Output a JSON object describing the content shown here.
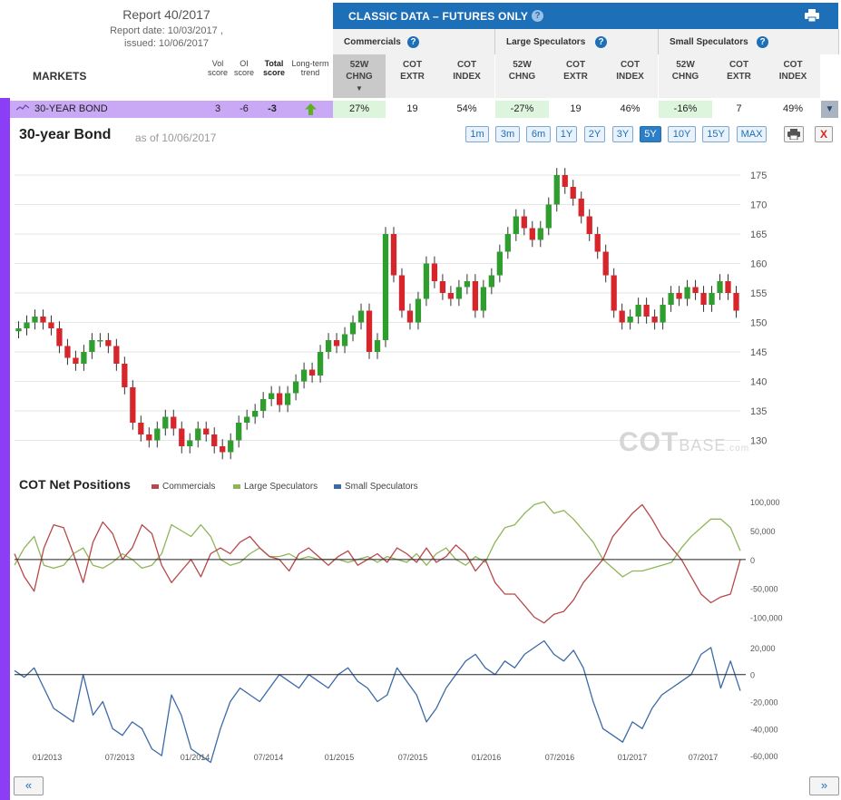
{
  "report": {
    "title": "Report 40/2017",
    "date_line": "Report date: 10/03/2017 ,",
    "issued_line": "issued: 10/06/2017"
  },
  "markets_label": "MARKETS",
  "left_cols": {
    "vol": [
      "Vol",
      "score"
    ],
    "oi": [
      "OI",
      "score"
    ],
    "total": [
      "Total",
      "score"
    ],
    "trend": [
      "Long-term",
      "trend"
    ]
  },
  "classic": {
    "title": "CLASSIC DATA – FUTURES ONLY",
    "help": "?",
    "groups": [
      {
        "label": "Commercials"
      },
      {
        "label": "Large Speculators"
      },
      {
        "label": "Small Speculators"
      }
    ],
    "subheaders": [
      [
        "52W",
        "CHNG"
      ],
      [
        "COT",
        "EXTR"
      ],
      [
        "COT",
        "INDEX"
      ],
      [
        "52W",
        "CHNG"
      ],
      [
        "COT",
        "EXTR"
      ],
      [
        "COT",
        "INDEX"
      ],
      [
        "52W",
        "CHNG"
      ],
      [
        "COT",
        "EXTR"
      ],
      [
        "COT",
        "INDEX"
      ]
    ],
    "sort_arrow": "▼"
  },
  "market_row": {
    "name": "30-YEAR BOND",
    "vol": "3",
    "oi": "-6",
    "total": "-3",
    "trend_icon": "arrow-up-green",
    "values": [
      "27%",
      "19",
      "54%",
      "-27%",
      "19",
      "46%",
      "-16%",
      "7",
      "49%"
    ],
    "expand": "▼"
  },
  "chart": {
    "title": "30-year Bond",
    "as_of": "as of 10/06/2017",
    "ranges": [
      "1m",
      "3m",
      "6m",
      "1Y",
      "2Y",
      "3Y",
      "5Y",
      "10Y",
      "15Y",
      "MAX"
    ],
    "active_range": "5Y",
    "close": "X",
    "watermark": {
      "cot": "COT",
      "base": "BASE",
      "com": ".com"
    }
  },
  "chart_data": [
    {
      "type": "candlestick",
      "title": "30-year Bond",
      "ylim": [
        127,
        177
      ],
      "y_ticks": [
        130,
        135,
        140,
        145,
        150,
        155,
        160,
        165,
        170,
        175
      ],
      "grid": true,
      "colors": {
        "up": "#2f9e2f",
        "down": "#d7262b"
      },
      "approx_closes": [
        149,
        150,
        151,
        150,
        149,
        146,
        144,
        143,
        145,
        147,
        147,
        146,
        143,
        139,
        133,
        131,
        130,
        132,
        134,
        132,
        129,
        130,
        132,
        131,
        129,
        128,
        130,
        133,
        134,
        135,
        137,
        138,
        136,
        138,
        140,
        142,
        141,
        145,
        147,
        146,
        148,
        150,
        152,
        145,
        147,
        165,
        158,
        152,
        150,
        154,
        160,
        157,
        155,
        154,
        156,
        157,
        152,
        156,
        158,
        162,
        165,
        168,
        166,
        164,
        166,
        170,
        175,
        173,
        171,
        168,
        165,
        162,
        158,
        152,
        150,
        151,
        153,
        151,
        150,
        153,
        155,
        154,
        156,
        155,
        153,
        155,
        157,
        155,
        152
      ]
    },
    {
      "type": "line",
      "title": "COT Net Positions",
      "series": [
        {
          "name": "Commercials",
          "color": "#b8474b"
        },
        {
          "name": "Large Speculators",
          "color": "#8fb559"
        }
      ],
      "ylim": [
        -115000,
        105000
      ],
      "y_ticks": [
        100000,
        50000,
        0,
        -50000,
        -100000
      ],
      "y_tick_labels": [
        "100,000",
        "50,000",
        "0",
        "-50,000",
        "-100,000"
      ],
      "commercials": [
        10000,
        -30000,
        -55000,
        20000,
        60000,
        55000,
        10000,
        -40000,
        30000,
        65000,
        45000,
        0,
        20000,
        60000,
        45000,
        -10000,
        -40000,
        -20000,
        0,
        -30000,
        10000,
        20000,
        10000,
        30000,
        40000,
        20000,
        5000,
        0,
        -20000,
        10000,
        20000,
        5000,
        -10000,
        5000,
        15000,
        -10000,
        0,
        10000,
        -5000,
        20000,
        10000,
        -5000,
        20000,
        -5000,
        5000,
        25000,
        10000,
        -20000,
        0,
        -40000,
        -60000,
        -60000,
        -80000,
        -100000,
        -110000,
        -95000,
        -90000,
        -70000,
        -40000,
        -20000,
        0,
        40000,
        60000,
        80000,
        95000,
        70000,
        40000,
        20000,
        0,
        -30000,
        -60000,
        -75000,
        -65000,
        -60000,
        0
      ],
      "large_speculators": [
        -10000,
        20000,
        40000,
        -10000,
        -15000,
        -10000,
        10000,
        20000,
        -10000,
        -15000,
        -5000,
        10000,
        0,
        -15000,
        -10000,
        10000,
        60000,
        50000,
        40000,
        60000,
        40000,
        0,
        -10000,
        -5000,
        10000,
        20000,
        5000,
        5000,
        10000,
        0,
        5000,
        0,
        0,
        0,
        -5000,
        0,
        5000,
        -5000,
        5000,
        0,
        -5000,
        10000,
        -10000,
        10000,
        20000,
        0,
        -10000,
        5000,
        -5000,
        30000,
        55000,
        60000,
        80000,
        95000,
        100000,
        80000,
        85000,
        70000,
        50000,
        30000,
        0,
        -15000,
        -30000,
        -20000,
        -20000,
        -15000,
        -10000,
        -5000,
        20000,
        40000,
        55000,
        70000,
        70000,
        55000,
        15000
      ]
    },
    {
      "type": "line",
      "title": "",
      "series": [
        {
          "name": "Small Speculators",
          "color": "#3b6aa5"
        }
      ],
      "ylim": [
        -68000,
        26000
      ],
      "y_ticks": [
        20000,
        0,
        -20000,
        -40000,
        -60000
      ],
      "y_tick_labels": [
        "20,000",
        "0",
        "-20,000",
        "-40,000",
        "-60,000"
      ],
      "x_tick_labels": [
        "01/2013",
        "07/2013",
        "01/2014",
        "07/2014",
        "01/2015",
        "07/2015",
        "01/2016",
        "07/2016",
        "01/2017",
        "07/2017"
      ],
      "small_speculators": [
        3000,
        -2000,
        5000,
        -10000,
        -25000,
        -30000,
        -35000,
        0,
        -30000,
        -20000,
        -40000,
        -45000,
        -35000,
        -40000,
        -55000,
        -60000,
        -15000,
        -30000,
        -55000,
        -60000,
        -65000,
        -40000,
        -20000,
        -10000,
        -15000,
        -20000,
        -10000,
        0,
        -5000,
        -10000,
        0,
        -5000,
        -10000,
        0,
        5000,
        -5000,
        -10000,
        -20000,
        -15000,
        5000,
        -5000,
        -15000,
        -35000,
        -25000,
        -10000,
        0,
        10000,
        15000,
        5000,
        0,
        10000,
        5000,
        15000,
        20000,
        25000,
        15000,
        10000,
        18000,
        5000,
        -20000,
        -40000,
        -45000,
        -50000,
        -35000,
        -40000,
        -25000,
        -15000,
        -10000,
        -5000,
        0,
        15000,
        20000,
        -10000,
        10000,
        -12000
      ]
    }
  ],
  "cot": {
    "title": "COT Net Positions",
    "legend": [
      "Commercials",
      "Large Speculators",
      "Small Speculators"
    ]
  },
  "nav": {
    "prev": "«",
    "next": "»"
  }
}
